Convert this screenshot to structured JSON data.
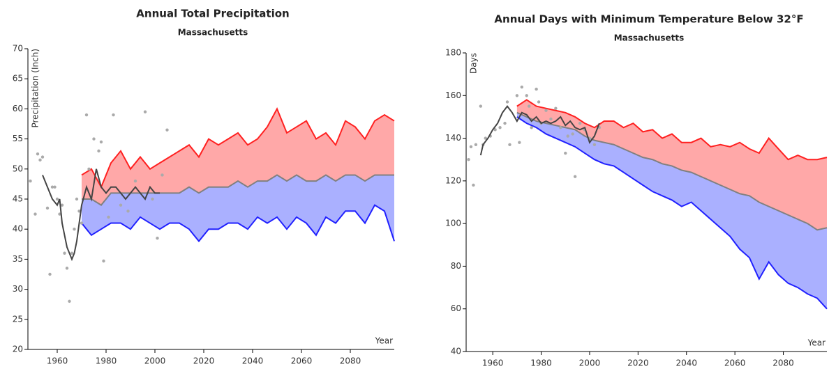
{
  "chart_data": [
    {
      "type": "line",
      "title": "Annual Total Precipitation",
      "subtitle": "Massachusetts",
      "y_label": "Precipitation (Inch)",
      "x_label": "Year",
      "xlim": [
        1948,
        2098
      ],
      "xticks": [
        1960,
        1980,
        2000,
        2020,
        2040,
        2060,
        2080
      ],
      "ylim": [
        20,
        70
      ],
      "yticks": [
        20,
        25,
        30,
        35,
        40,
        45,
        50,
        55,
        60,
        65,
        70
      ],
      "observed": {
        "type": "scatter",
        "color": "#aaaaaa",
        "x": [
          1949,
          1951,
          1952,
          1953,
          1954,
          1956,
          1957,
          1958,
          1959,
          1960,
          1961,
          1962,
          1963,
          1964,
          1965,
          1966,
          1967,
          1968,
          1969,
          1970,
          1972,
          1973,
          1975,
          1977,
          1978,
          1979,
          1981,
          1983,
          1986,
          1989,
          1992,
          1996,
          1999,
          2001,
          2003,
          2005
        ],
        "values": [
          48,
          42.5,
          52.5,
          51.5,
          52,
          43.5,
          32.5,
          47,
          47,
          45,
          42.5,
          44,
          36,
          33.5,
          28,
          36,
          40,
          45,
          43,
          41,
          59,
          50,
          55,
          53,
          54.5,
          34.7,
          42,
          59,
          44,
          43,
          48,
          59.5,
          45,
          38.5,
          49,
          56.5
        ]
      },
      "observed_smooth": {
        "type": "line",
        "color": "#444444",
        "x": [
          1954,
          1956,
          1958,
          1960,
          1961,
          1962,
          1964,
          1966,
          1967,
          1968,
          1970,
          1972,
          1974,
          1976,
          1978,
          1980,
          1982,
          1984,
          1986,
          1988,
          1990,
          1992,
          1994,
          1996,
          1998,
          2000,
          2002
        ],
        "values": [
          49,
          47,
          45,
          44,
          45,
          41,
          37,
          35,
          36,
          38,
          44,
          47,
          45,
          50,
          47,
          46,
          47,
          47,
          46,
          45,
          46,
          47,
          46,
          45,
          47,
          46,
          46
        ]
      },
      "projection": {
        "x": [
          1970,
          1974,
          1978,
          1982,
          1986,
          1990,
          1994,
          1998,
          2002,
          2006,
          2010,
          2014,
          2018,
          2022,
          2026,
          2030,
          2034,
          2038,
          2042,
          2046,
          2050,
          2054,
          2058,
          2062,
          2066,
          2070,
          2074,
          2078,
          2082,
          2086,
          2090,
          2094,
          2098
        ],
        "high": {
          "color": "#ff2020",
          "fill": "#ffa8a8",
          "values": [
            49,
            50,
            47,
            51,
            53,
            50,
            52,
            50,
            51,
            52,
            53,
            54,
            52,
            55,
            54,
            55,
            56,
            54,
            55,
            57,
            60,
            56,
            57,
            58,
            55,
            56,
            54,
            58,
            57,
            55,
            58,
            59,
            58
          ]
        },
        "median": {
          "color": "#808080",
          "values": [
            45,
            45,
            44,
            46,
            46,
            46,
            46,
            46,
            46,
            46,
            46,
            47,
            46,
            47,
            47,
            47,
            48,
            47,
            48,
            48,
            49,
            48,
            49,
            48,
            48,
            49,
            48,
            49,
            49,
            48,
            49,
            49,
            49
          ]
        },
        "low": {
          "color": "#2020ff",
          "fill": "#aab0ff",
          "values": [
            41,
            39,
            40,
            41,
            41,
            40,
            42,
            41,
            40,
            41,
            41,
            40,
            38,
            40,
            40,
            41,
            41,
            40,
            42,
            41,
            42,
            40,
            42,
            41,
            39,
            42,
            41,
            43,
            43,
            41,
            44,
            43,
            38
          ]
        }
      }
    },
    {
      "type": "line",
      "title": "Annual Days with Minimum Temperature Below 32°F",
      "subtitle": "Massachusetts",
      "y_label": "Days",
      "x_label": "Year",
      "xlim": [
        1949,
        2098
      ],
      "xticks": [
        1960,
        1980,
        2000,
        2020,
        2040,
        2060,
        2080
      ],
      "ylim": [
        40,
        180
      ],
      "yticks": [
        40,
        60,
        80,
        100,
        120,
        140,
        160,
        180
      ],
      "observed": {
        "type": "scatter",
        "color": "#aaaaaa",
        "x": [
          1950,
          1951,
          1952,
          1953,
          1955,
          1956,
          1957,
          1959,
          1961,
          1963,
          1965,
          1966,
          1967,
          1970,
          1971,
          1972,
          1974,
          1975,
          1976,
          1978,
          1979,
          1980,
          1982,
          1984,
          1986,
          1988,
          1990,
          1991,
          1993,
          1994,
          1996,
          1998,
          2000,
          2002,
          2004
        ],
        "values": [
          130,
          136,
          118,
          137,
          155,
          137,
          140,
          141,
          144,
          145,
          147,
          157,
          137,
          160,
          138,
          164,
          160,
          155,
          145,
          163,
          157,
          147,
          153,
          149,
          154,
          145,
          133,
          141,
          142,
          122,
          147,
          144,
          140,
          137,
          145
        ]
      },
      "observed_smooth": {
        "type": "line",
        "color": "#444444",
        "x": [
          1955,
          1956,
          1958,
          1960,
          1962,
          1964,
          1966,
          1968,
          1970,
          1972,
          1974,
          1976,
          1978,
          1980,
          1982,
          1984,
          1986,
          1988,
          1990,
          1992,
          1994,
          1996,
          1998,
          2000,
          2002,
          2004
        ],
        "values": [
          132,
          137,
          140,
          144,
          147,
          152,
          155,
          152,
          148,
          152,
          151,
          148,
          150,
          147,
          148,
          147,
          148,
          150,
          146,
          148,
          145,
          144,
          145,
          138,
          141,
          147
        ]
      },
      "projection": {
        "x": [
          1970,
          1974,
          1978,
          1982,
          1986,
          1990,
          1994,
          1998,
          2002,
          2006,
          2010,
          2014,
          2018,
          2022,
          2026,
          2030,
          2034,
          2038,
          2042,
          2046,
          2050,
          2054,
          2058,
          2062,
          2066,
          2070,
          2074,
          2078,
          2082,
          2086,
          2090,
          2094,
          2098
        ],
        "high": {
          "color": "#ff2020",
          "fill": "#ffa8a8",
          "values": [
            155,
            158,
            155,
            154,
            153,
            152,
            150,
            147,
            145,
            148,
            148,
            145,
            147,
            143,
            144,
            140,
            142,
            138,
            138,
            140,
            136,
            137,
            136,
            138,
            135,
            133,
            140,
            135,
            130,
            132,
            130,
            130,
            131
          ]
        },
        "median": {
          "color": "#808080",
          "values": [
            152,
            150,
            148,
            147,
            146,
            145,
            144,
            141,
            139,
            138,
            137,
            135,
            133,
            131,
            130,
            128,
            127,
            125,
            124,
            122,
            120,
            118,
            116,
            114,
            113,
            110,
            108,
            106,
            104,
            102,
            100,
            97,
            98
          ]
        },
        "low": {
          "color": "#2020ff",
          "fill": "#aab0ff",
          "values": [
            150,
            147,
            145,
            142,
            140,
            138,
            136,
            133,
            130,
            128,
            127,
            124,
            121,
            118,
            115,
            113,
            111,
            108,
            110,
            106,
            102,
            98,
            94,
            88,
            84,
            74,
            82,
            76,
            72,
            70,
            67,
            65,
            60
          ]
        }
      }
    }
  ]
}
